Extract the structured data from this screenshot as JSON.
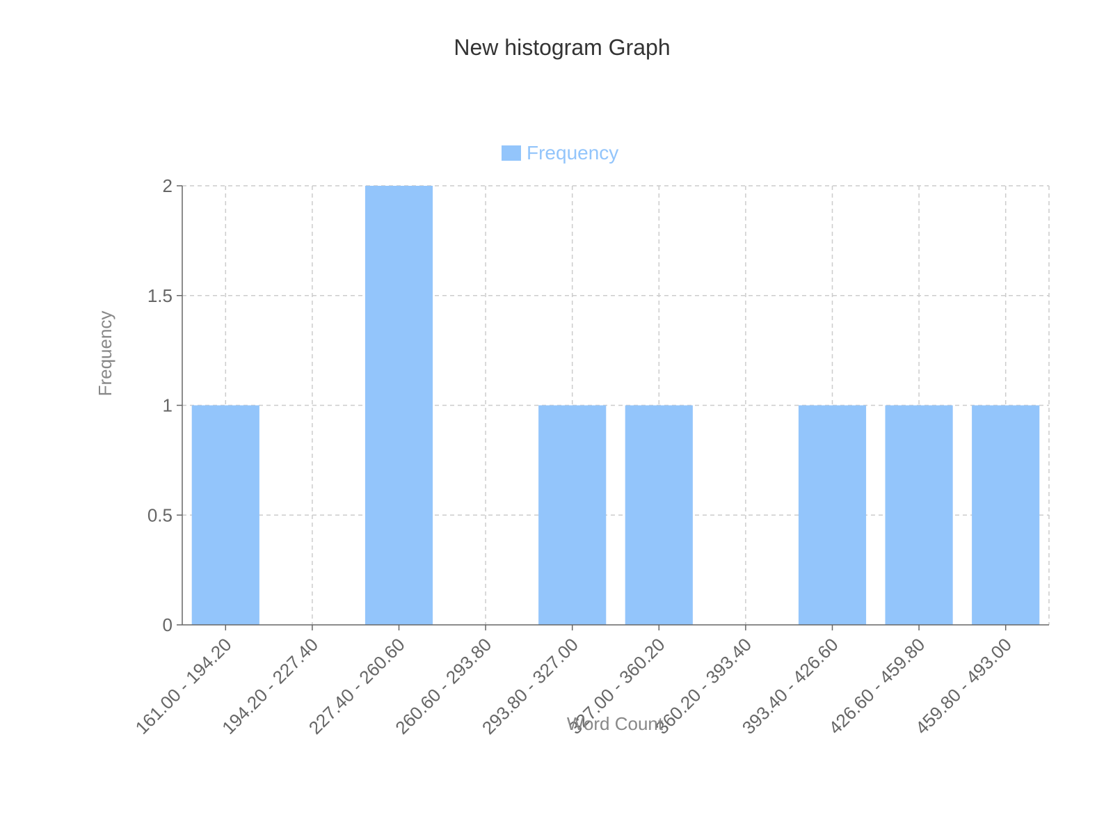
{
  "chart_data": {
    "type": "bar",
    "title": "New histogram Graph",
    "xlabel": "Word Count",
    "ylabel": "Frequency",
    "categories": [
      "161.00 - 194.20",
      "194.20 - 227.40",
      "227.40 - 260.60",
      "260.60 - 293.80",
      "293.80 - 327.00",
      "327.00 - 360.20",
      "360.20 - 393.40",
      "393.40 - 426.60",
      "426.60 - 459.80",
      "459.80 - 493.00"
    ],
    "series": [
      {
        "name": "Frequency",
        "values": [
          1,
          0,
          2,
          0,
          1,
          1,
          0,
          1,
          1,
          1
        ],
        "color": "#93c5fb"
      }
    ],
    "ylim": [
      0,
      2
    ],
    "yticks": [
      "0",
      "0.5",
      "1",
      "1.5",
      "2"
    ],
    "grid": true,
    "legend": "top-center"
  }
}
